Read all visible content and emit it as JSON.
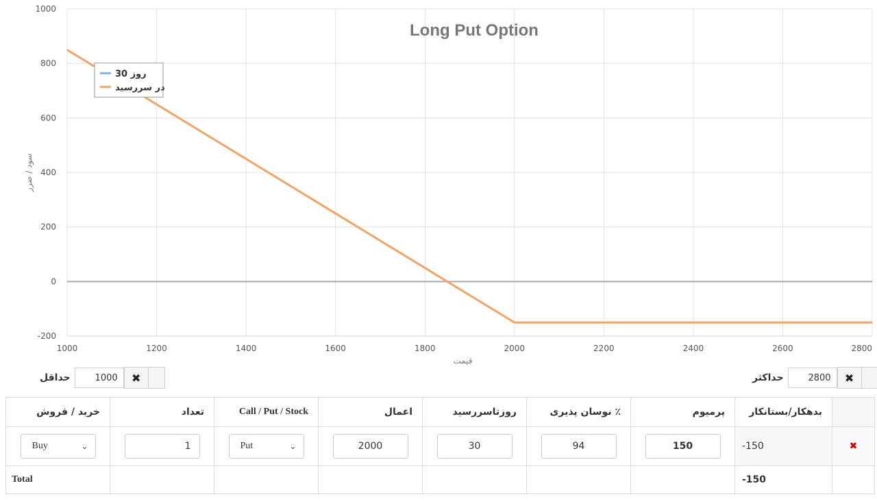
{
  "chart_data": {
    "type": "line",
    "title": "Long Put Option",
    "xlabel": "قیمت",
    "ylabel": "سود / ضرر",
    "xlim": [
      1000,
      2800
    ],
    "ylim": [
      -200,
      1000
    ],
    "x_ticks": [
      1000,
      1200,
      1400,
      1600,
      1800,
      2000,
      2200,
      2400,
      2600,
      2800
    ],
    "y_ticks": [
      -200,
      0,
      200,
      400,
      600,
      800,
      1000
    ],
    "grid": true,
    "legend_position": "top-left",
    "series": [
      {
        "name": "روز 30",
        "color": "#7cb5ec",
        "points": []
      },
      {
        "name": "در سررسید",
        "color": "#f0a465",
        "points": [
          [
            1000,
            850
          ],
          [
            2000,
            -150
          ],
          [
            2800,
            -150
          ]
        ]
      }
    ]
  },
  "controls": {
    "min_label": "حداقل",
    "min_value": "1000",
    "max_label": "حداکثر",
    "max_value": "2800",
    "clear_icon": "✖"
  },
  "table": {
    "headers": {
      "debit_credit": "بدهکار/بستانکار",
      "premium": "پرمیوم",
      "volatility": "٪ نوسان پذیری",
      "days_to_expiry": "روزتاسررسید",
      "strike": "اعمال",
      "type": "Call / Put / Stock",
      "quantity": "تعداد",
      "side": "خرید / فروش"
    },
    "row": {
      "delete_icon": "✖",
      "debit_credit": "-150",
      "premium": "150",
      "volatility": "94",
      "days_to_expiry": "30",
      "strike": "2000",
      "type": "Put",
      "quantity": "1",
      "side": "Buy"
    },
    "total": {
      "label": "Total",
      "value": "-150"
    }
  }
}
